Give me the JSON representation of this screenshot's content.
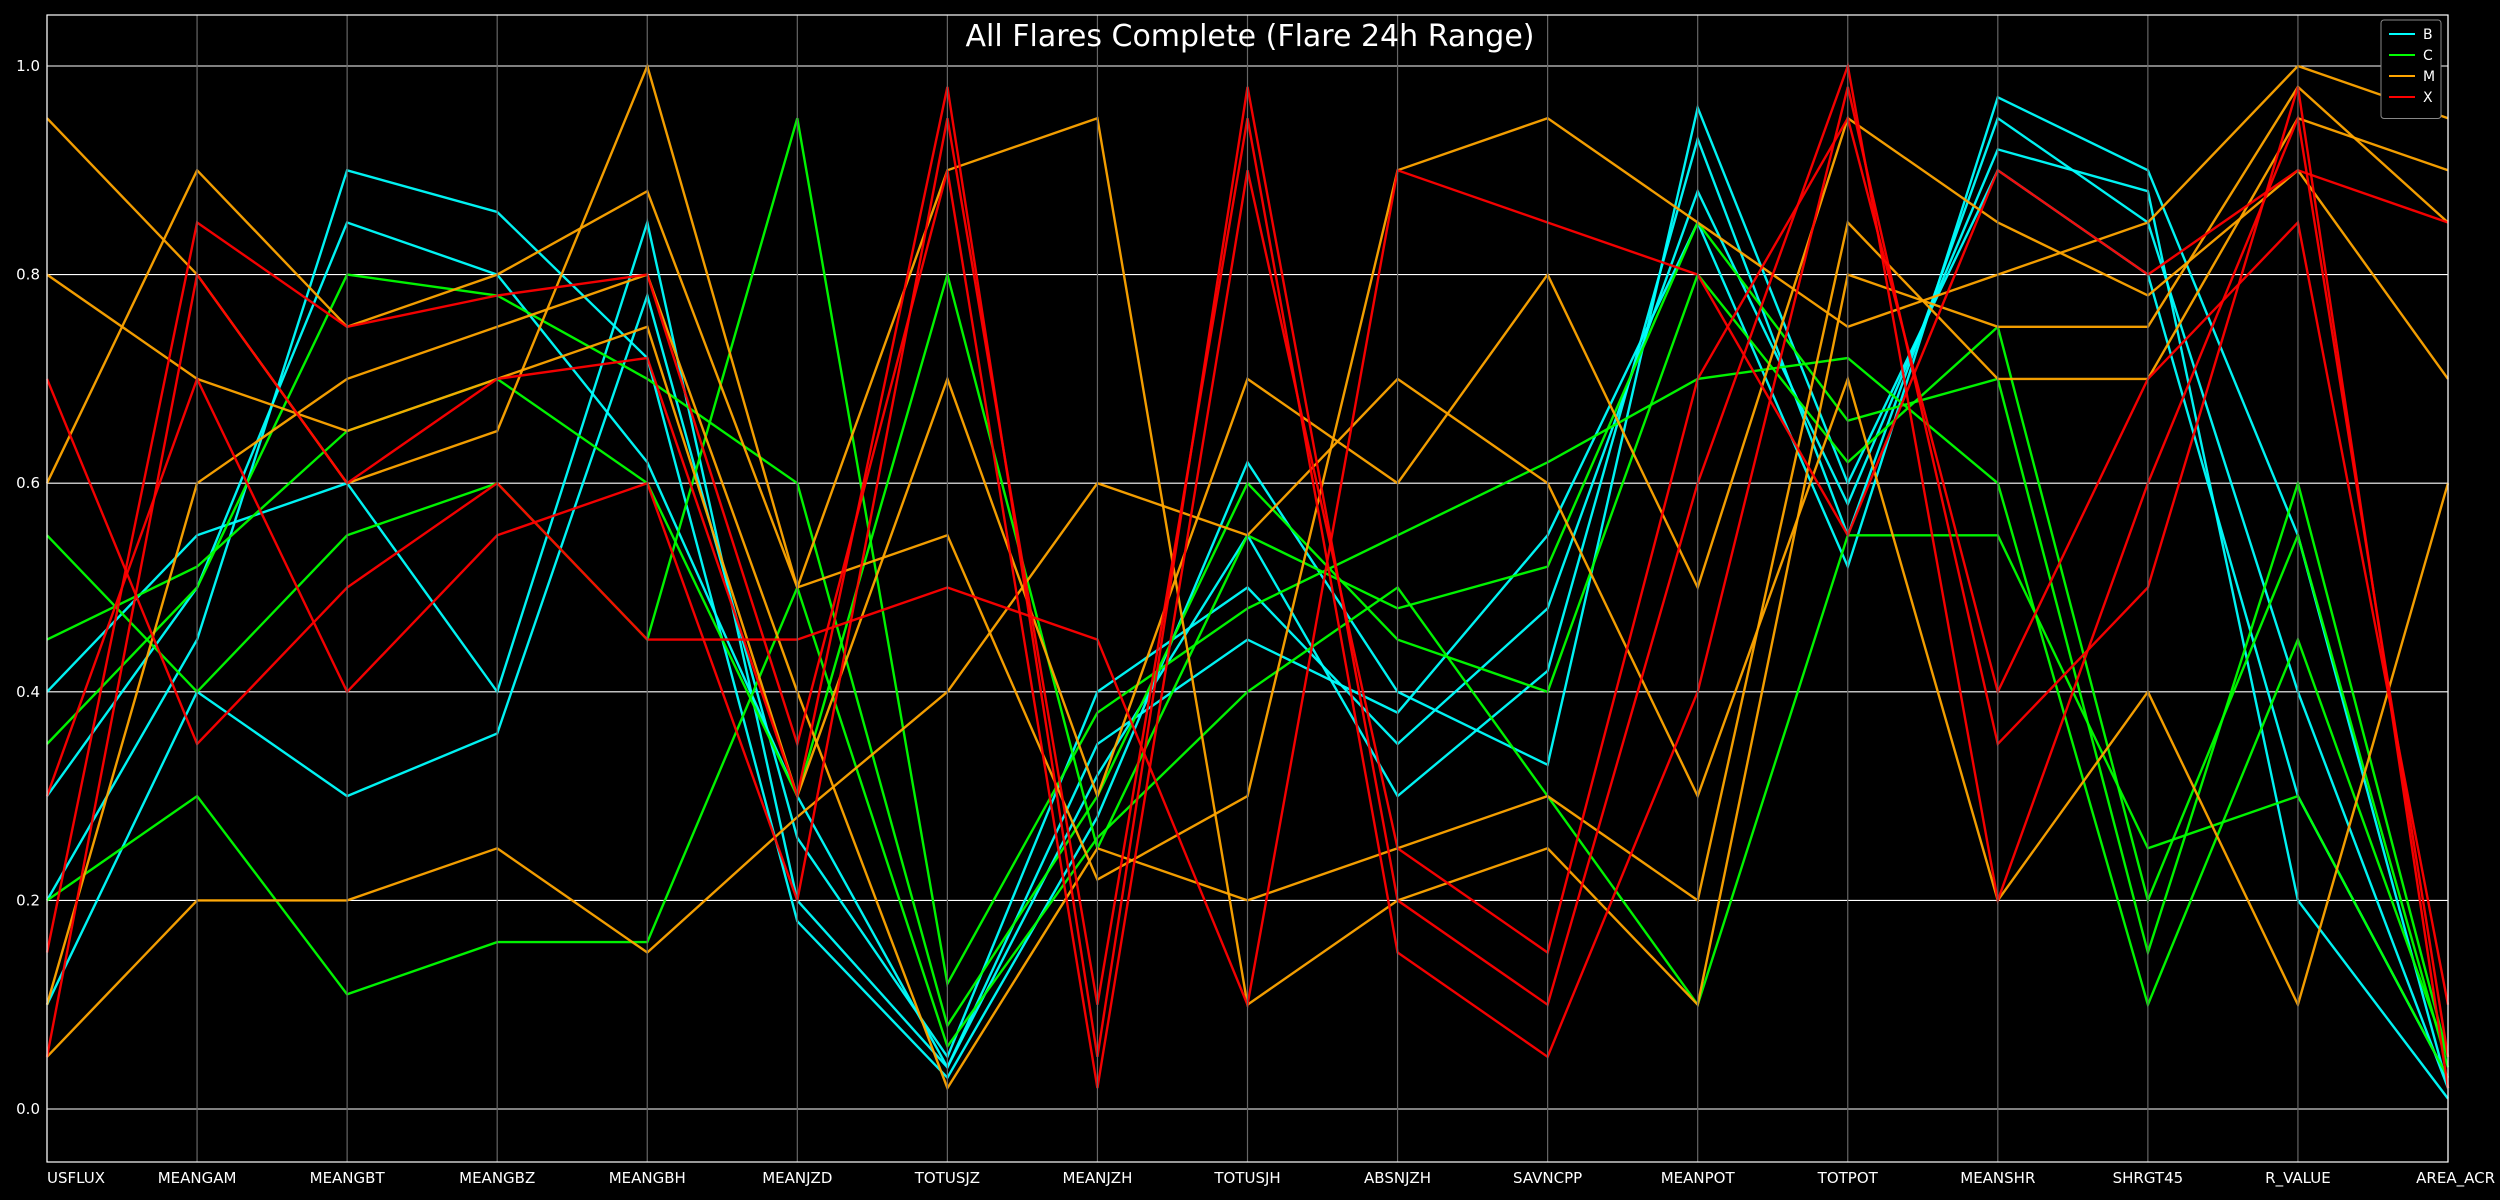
{
  "chart_data": {
    "type": "line",
    "subtype": "parallel-coordinates",
    "title": "All Flares Complete (Flare 24h Range)",
    "xlabel": "",
    "ylabel": "",
    "ylim": [
      0,
      1
    ],
    "yticks": [
      "0.0",
      "0.2",
      "0.4",
      "0.6",
      "0.8",
      "1.0"
    ],
    "grid": "horizontal",
    "legend_position": "top-right",
    "categories": [
      "USFLUX",
      "MEANGAM",
      "MEANGBT",
      "MEANGBZ",
      "MEANGBH",
      "MEANJZD",
      "TOTUSJZ",
      "MEANJZH",
      "TOTUSJH",
      "ABSNJZH",
      "SAVNCPP",
      "MEANPOT",
      "TOTPOT",
      "MEANSHR",
      "SHRGT45",
      "R_VALUE",
      "AREA_ACR"
    ],
    "series": [
      {
        "name": "B",
        "color": "#00ffff",
        "values": [
          [
            0.3,
            0.5,
            0.85,
            0.8,
            0.62,
            0.3,
            0.04,
            0.32,
            0.55,
            0.3,
            0.42,
            0.93,
            0.55,
            0.95,
            0.85,
            0.4,
            0.02
          ],
          [
            0.2,
            0.45,
            0.9,
            0.86,
            0.72,
            0.18,
            0.03,
            0.28,
            0.62,
            0.4,
            0.33,
            0.96,
            0.6,
            0.9,
            0.8,
            0.3,
            0.03
          ],
          [
            0.4,
            0.55,
            0.6,
            0.4,
            0.85,
            0.2,
            0.04,
            0.35,
            0.45,
            0.38,
            0.55,
            0.85,
            0.52,
            0.97,
            0.9,
            0.55,
            0.02
          ],
          [
            0.1,
            0.4,
            0.3,
            0.36,
            0.78,
            0.26,
            0.05,
            0.4,
            0.5,
            0.35,
            0.48,
            0.88,
            0.58,
            0.92,
            0.88,
            0.2,
            0.01
          ]
        ]
      },
      {
        "name": "C",
        "color": "#00ff00",
        "values": [
          [
            0.35,
            0.5,
            0.8,
            0.78,
            0.7,
            0.6,
            0.08,
            0.3,
            0.6,
            0.45,
            0.4,
            0.8,
            0.62,
            0.75,
            0.2,
            0.55,
            0.04
          ],
          [
            0.55,
            0.4,
            0.55,
            0.6,
            0.45,
            0.95,
            0.12,
            0.38,
            0.48,
            0.55,
            0.62,
            0.7,
            0.72,
            0.6,
            0.1,
            0.45,
            0.05
          ],
          [
            0.2,
            0.3,
            0.11,
            0.16,
            0.16,
            0.5,
            0.06,
            0.26,
            0.4,
            0.5,
            0.3,
            0.1,
            0.55,
            0.55,
            0.25,
            0.3,
            0.03
          ],
          [
            0.45,
            0.52,
            0.65,
            0.7,
            0.6,
            0.3,
            0.8,
            0.25,
            0.55,
            0.48,
            0.52,
            0.85,
            0.66,
            0.7,
            0.15,
            0.6,
            0.05
          ]
        ]
      },
      {
        "name": "M",
        "color": "#ffa500",
        "values": [
          [
            0.1,
            0.6,
            0.7,
            0.75,
            0.8,
            0.4,
            0.02,
            0.25,
            0.2,
            0.25,
            0.3,
            0.2,
            0.85,
            0.7,
            0.7,
            0.95,
            0.9
          ],
          [
            0.6,
            0.9,
            0.75,
            0.8,
            0.88,
            0.5,
            0.9,
            0.95,
            0.1,
            0.2,
            0.25,
            0.1,
            0.8,
            0.75,
            0.75,
            0.98,
            0.85
          ],
          [
            0.8,
            0.7,
            0.65,
            0.7,
            0.75,
            0.3,
            0.7,
            0.3,
            0.7,
            0.6,
            0.8,
            0.5,
            0.95,
            0.85,
            0.78,
            0.9,
            0.7
          ],
          [
            0.05,
            0.2,
            0.2,
            0.25,
            0.15,
            0.28,
            0.4,
            0.6,
            0.55,
            0.7,
            0.6,
            0.3,
            0.7,
            0.2,
            0.4,
            0.1,
            0.6
          ],
          [
            0.95,
            0.8,
            0.6,
            0.65,
            1.0,
            0.5,
            0.55,
            0.22,
            0.3,
            0.9,
            0.95,
            0.85,
            0.75,
            0.8,
            0.85,
            1.0,
            0.95
          ]
        ]
      },
      {
        "name": "X",
        "color": "#ff0000",
        "values": [
          [
            0.05,
            0.8,
            0.6,
            0.7,
            0.72,
            0.3,
            0.98,
            0.05,
            0.98,
            0.2,
            0.1,
            0.6,
            1.0,
            0.2,
            0.6,
            0.95,
            0.05
          ],
          [
            0.3,
            0.7,
            0.4,
            0.55,
            0.6,
            0.2,
            0.95,
            0.1,
            0.95,
            0.15,
            0.05,
            0.4,
            0.98,
            0.35,
            0.5,
            0.98,
            0.02
          ],
          [
            0.7,
            0.35,
            0.5,
            0.6,
            0.45,
            0.45,
            0.5,
            0.45,
            0.1,
            0.9,
            0.85,
            0.8,
            0.55,
            0.9,
            0.8,
            0.9,
            0.85
          ],
          [
            0.15,
            0.85,
            0.75,
            0.78,
            0.8,
            0.35,
            0.9,
            0.02,
            0.9,
            0.25,
            0.15,
            0.7,
            0.95,
            0.4,
            0.7,
            0.85,
            0.1
          ]
        ]
      }
    ]
  }
}
